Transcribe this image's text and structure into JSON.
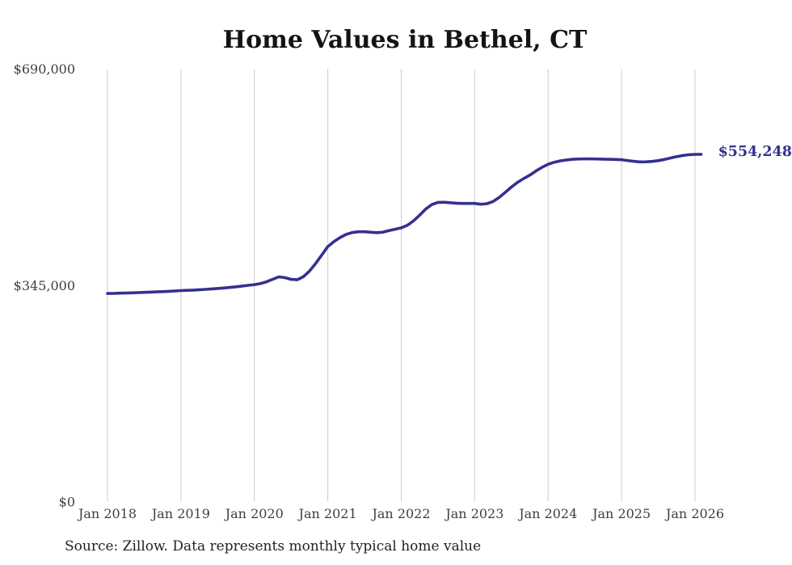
{
  "page": {
    "background": "#ffffff",
    "source_note": "Source: Zillow. Data represents monthly typical home value"
  },
  "chart_data": {
    "type": "line",
    "title": "Home Values in Bethel, CT",
    "xlabel": "",
    "ylabel": "",
    "ylim": [
      0,
      690000
    ],
    "grid": "vertical-only",
    "legend": "none",
    "end_label": "$554,248",
    "latest_value": 554248,
    "x_tick_labels": [
      "Jan 2018",
      "Jan 2019",
      "Jan 2020",
      "Jan 2021",
      "Jan 2022",
      "Jan 2023",
      "Jan 2024",
      "Jan 2025",
      "Jan 2026"
    ],
    "y_ticks": [
      {
        "label": "$0",
        "value": 0
      },
      {
        "label": "$345,000",
        "value": 345000
      },
      {
        "label": "$690,000",
        "value": 690000
      }
    ],
    "series": [
      {
        "name": "Typical home value, Bethel CT",
        "start_month": "Jan 2018",
        "frequency": "monthly",
        "values": [
          332300,
          332500,
          332800,
          333100,
          333400,
          333700,
          334100,
          334500,
          334900,
          335300,
          335800,
          336300,
          337000,
          337300,
          337700,
          338300,
          338900,
          339600,
          340300,
          341100,
          342000,
          343000,
          344100,
          345300,
          346500,
          348200,
          351000,
          355000,
          358800,
          357500,
          354800,
          354200,
          359000,
          368000,
          380000,
          393500,
          407000,
          415000,
          421500,
          426500,
          429500,
          430800,
          430800,
          430000,
          429300,
          430000,
          432500,
          434800,
          437000,
          441000,
          448000,
          457000,
          467000,
          474000,
          477500,
          477800,
          477000,
          476200,
          475800,
          475800,
          475800,
          474500,
          475500,
          479000,
          485500,
          493500,
          502000,
          509500,
          515500,
          521000,
          527500,
          533500,
          538300,
          541500,
          543800,
          545200,
          546200,
          546700,
          546800,
          546800,
          546700,
          546500,
          546200,
          545900,
          545600,
          544300,
          543000,
          542100,
          542200,
          542900,
          544200,
          546000,
          548200,
          550500,
          552300,
          553600,
          554100,
          554248
        ]
      }
    ],
    "colors": {
      "line": "#353090",
      "end_label": "#353090",
      "gridline": "#cccccc",
      "title": "#141414",
      "tick_label": "#3e3e3e",
      "source": "#222222"
    }
  }
}
